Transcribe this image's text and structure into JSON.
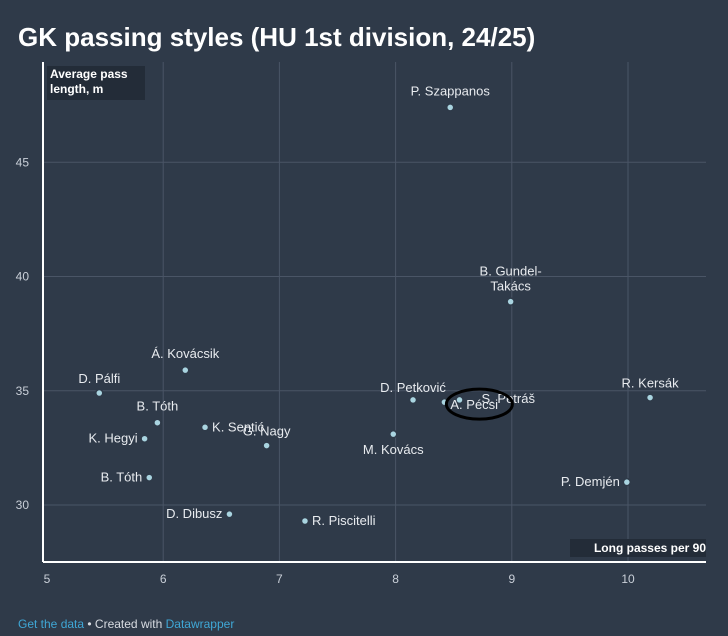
{
  "title": "GK passing styles (HU 1st division, 24/25)",
  "footer": {
    "get_data": "Get the data",
    "separator": " • Created with ",
    "tool": "Datawrapper"
  },
  "chart_data": {
    "type": "scatter",
    "title": "GK passing styles (HU 1st division, 24/25)",
    "xlabel": "Long passes per 90",
    "ylabel_lines": [
      "Average pass",
      "length, m"
    ],
    "xlim": [
      5,
      10.7
    ],
    "ylim": [
      27.5,
      48
    ],
    "x_ticks": [
      5,
      6,
      7,
      8,
      9,
      10
    ],
    "y_ticks": [
      30,
      35,
      40,
      45
    ],
    "grid": true,
    "points": [
      {
        "label": "P. Szappanos",
        "x": 8.47,
        "y": 47.4
      },
      {
        "label_lines": [
          "B. Gundel-",
          "Takács"
        ],
        "x": 8.99,
        "y": 38.9
      },
      {
        "label": "Á. Kovácsik",
        "x": 6.19,
        "y": 35.9
      },
      {
        "label": "D. Pálfi",
        "x": 5.45,
        "y": 34.9
      },
      {
        "label": "B. Tóth",
        "x": 5.95,
        "y": 33.6
      },
      {
        "label": "K. Hegyi",
        "x": 5.84,
        "y": 32.9
      },
      {
        "label": "K. Sentić",
        "x": 6.36,
        "y": 33.4
      },
      {
        "label": "G. Nagy",
        "x": 6.89,
        "y": 32.6
      },
      {
        "label": "B. Tóth",
        "x": 5.88,
        "y": 31.2
      },
      {
        "label": "D. Dibusz",
        "x": 6.57,
        "y": 29.6
      },
      {
        "label": "R. Piscitelli",
        "x": 7.22,
        "y": 29.3
      },
      {
        "label": "M. Kovács",
        "x": 7.98,
        "y": 33.1
      },
      {
        "label": "D. Petković",
        "x": 8.15,
        "y": 34.6
      },
      {
        "label": "A. Pécsi",
        "x": 8.42,
        "y": 34.5
      },
      {
        "label": "S. Petráš",
        "x": 8.55,
        "y": 34.6
      },
      {
        "label": "R. Kersák",
        "x": 10.19,
        "y": 34.7
      },
      {
        "label": "P. Demjén",
        "x": 9.99,
        "y": 31.0
      }
    ],
    "highlight": {
      "label": "A. Pécsi",
      "shape": "ellipse"
    }
  }
}
